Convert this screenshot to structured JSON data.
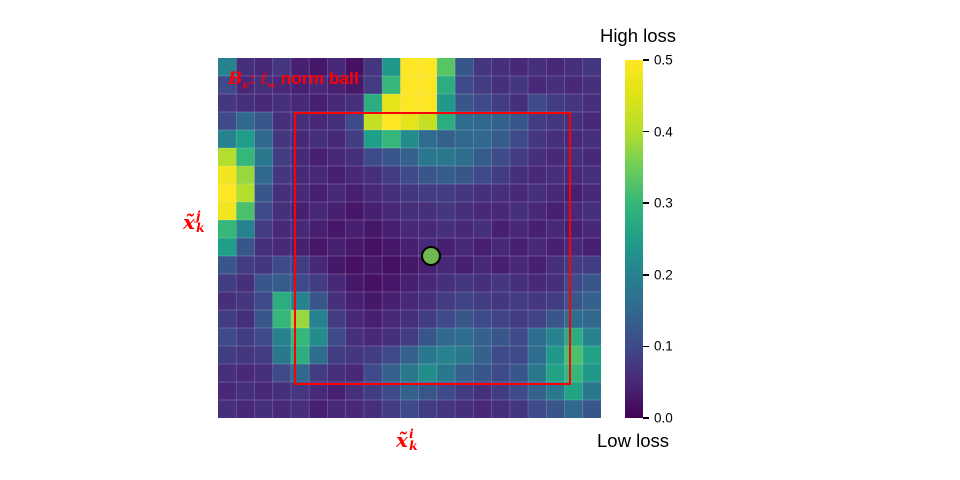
{
  "figure": {
    "annotation": {
      "text": "Bϵ: ℓ∞ norm ball",
      "var": "B",
      "var_sub": "ϵ",
      "colon": ": ",
      "ell": "ℓ",
      "ell_sub": "∞",
      "rest": " norm ball",
      "color": "#ff0000"
    },
    "axis_labels": {
      "y": {
        "base": "x̃",
        "sup": "j",
        "sub": "k"
      },
      "x": {
        "base": "x̃",
        "sup": "i",
        "sub": "k"
      }
    },
    "marker": {
      "fill": "#6fb750",
      "outline": "#000000"
    },
    "norm_ball_color": "#ff0000",
    "colorbar": {
      "high_label": "High loss",
      "low_label": "Low loss",
      "ticks": [
        "0.5",
        "0.4",
        "0.3",
        "0.2",
        "0.1",
        "0.0"
      ]
    }
  },
  "chart_data": {
    "type": "heatmap",
    "title": "",
    "xlabel": "x̃_k^i",
    "ylabel": "x̃_k^j",
    "legend_high": "High loss",
    "legend_low": "Low loss",
    "value_min": 0.0,
    "value_max": 0.5,
    "colorbar_ticks": [
      0.5,
      0.4,
      0.3,
      0.2,
      0.1,
      0.0
    ],
    "grid_on": true,
    "grid_cols": 21,
    "grid_rows": 20,
    "colormap": "viridis",
    "colormap_stops": [
      {
        "t": 0.0,
        "c": "#440154"
      },
      {
        "t": 0.1,
        "c": "#482878"
      },
      {
        "t": 0.2,
        "c": "#3e4a89"
      },
      {
        "t": 0.3,
        "c": "#31688e"
      },
      {
        "t": 0.4,
        "c": "#26828e"
      },
      {
        "t": 0.5,
        "c": "#1f9e89"
      },
      {
        "t": 0.6,
        "c": "#35b779"
      },
      {
        "t": 0.7,
        "c": "#6dcd59"
      },
      {
        "t": 0.8,
        "c": "#b4de2c"
      },
      {
        "t": 0.9,
        "c": "#dfe318"
      },
      {
        "t": 1.0,
        "c": "#fde725"
      }
    ],
    "values": [
      [
        0.2,
        0.06,
        0.05,
        0.07,
        0.04,
        0.03,
        0.05,
        0.02,
        0.07,
        0.24,
        0.5,
        0.5,
        0.33,
        0.12,
        0.07,
        0.06,
        0.05,
        0.06,
        0.05,
        0.06,
        0.07
      ],
      [
        0.1,
        0.05,
        0.06,
        0.05,
        0.04,
        0.05,
        0.04,
        0.03,
        0.08,
        0.3,
        0.5,
        0.5,
        0.28,
        0.1,
        0.08,
        0.06,
        0.07,
        0.05,
        0.06,
        0.05,
        0.06
      ],
      [
        0.07,
        0.06,
        0.05,
        0.06,
        0.05,
        0.04,
        0.05,
        0.06,
        0.28,
        0.46,
        0.5,
        0.5,
        0.24,
        0.12,
        0.1,
        0.08,
        0.06,
        0.1,
        0.08,
        0.07,
        0.06
      ],
      [
        0.1,
        0.15,
        0.12,
        0.06,
        0.06,
        0.05,
        0.06,
        0.1,
        0.42,
        0.5,
        0.46,
        0.42,
        0.28,
        0.16,
        0.15,
        0.14,
        0.12,
        0.08,
        0.07,
        0.06,
        0.05
      ],
      [
        0.2,
        0.25,
        0.15,
        0.07,
        0.05,
        0.06,
        0.05,
        0.08,
        0.25,
        0.3,
        0.22,
        0.16,
        0.14,
        0.15,
        0.15,
        0.13,
        0.1,
        0.07,
        0.06,
        0.05,
        0.06
      ],
      [
        0.4,
        0.3,
        0.18,
        0.08,
        0.05,
        0.04,
        0.05,
        0.06,
        0.1,
        0.12,
        0.14,
        0.18,
        0.18,
        0.16,
        0.13,
        0.1,
        0.08,
        0.06,
        0.05,
        0.06,
        0.05
      ],
      [
        0.48,
        0.38,
        0.15,
        0.07,
        0.05,
        0.05,
        0.04,
        0.05,
        0.06,
        0.08,
        0.1,
        0.12,
        0.13,
        0.12,
        0.1,
        0.08,
        0.06,
        0.05,
        0.06,
        0.05,
        0.06
      ],
      [
        0.5,
        0.4,
        0.12,
        0.06,
        0.05,
        0.04,
        0.05,
        0.04,
        0.05,
        0.06,
        0.07,
        0.08,
        0.08,
        0.07,
        0.06,
        0.06,
        0.05,
        0.06,
        0.05,
        0.04,
        0.05
      ],
      [
        0.48,
        0.32,
        0.1,
        0.06,
        0.04,
        0.05,
        0.04,
        0.03,
        0.04,
        0.05,
        0.06,
        0.06,
        0.07,
        0.06,
        0.05,
        0.05,
        0.06,
        0.05,
        0.04,
        0.05,
        0.06
      ],
      [
        0.3,
        0.2,
        0.08,
        0.05,
        0.05,
        0.04,
        0.03,
        0.04,
        0.03,
        0.04,
        0.05,
        0.05,
        0.06,
        0.05,
        0.06,
        0.04,
        0.05,
        0.04,
        0.05,
        0.04,
        0.05
      ],
      [
        0.25,
        0.12,
        0.06,
        0.05,
        0.04,
        0.03,
        0.04,
        0.03,
        0.02,
        0.03,
        0.04,
        0.05,
        0.04,
        0.05,
        0.04,
        0.05,
        0.04,
        0.05,
        0.04,
        0.05,
        0.04
      ],
      [
        0.12,
        0.08,
        0.07,
        0.1,
        0.08,
        0.05,
        0.03,
        0.02,
        0.03,
        0.02,
        0.03,
        0.04,
        0.05,
        0.04,
        0.05,
        0.04,
        0.05,
        0.04,
        0.06,
        0.08,
        0.08
      ],
      [
        0.08,
        0.06,
        0.12,
        0.13,
        0.1,
        0.08,
        0.05,
        0.03,
        0.02,
        0.03,
        0.04,
        0.05,
        0.06,
        0.07,
        0.06,
        0.07,
        0.06,
        0.05,
        0.06,
        0.1,
        0.12
      ],
      [
        0.06,
        0.07,
        0.1,
        0.28,
        0.2,
        0.12,
        0.06,
        0.04,
        0.03,
        0.04,
        0.05,
        0.06,
        0.08,
        0.09,
        0.08,
        0.07,
        0.08,
        0.07,
        0.08,
        0.12,
        0.14
      ],
      [
        0.08,
        0.06,
        0.12,
        0.3,
        0.38,
        0.2,
        0.08,
        0.05,
        0.04,
        0.05,
        0.06,
        0.08,
        0.1,
        0.12,
        0.1,
        0.09,
        0.08,
        0.09,
        0.12,
        0.16,
        0.15
      ],
      [
        0.1,
        0.08,
        0.1,
        0.2,
        0.3,
        0.22,
        0.1,
        0.06,
        0.05,
        0.06,
        0.08,
        0.12,
        0.15,
        0.16,
        0.14,
        0.12,
        0.1,
        0.16,
        0.2,
        0.28,
        0.2
      ],
      [
        0.08,
        0.07,
        0.08,
        0.18,
        0.28,
        0.16,
        0.08,
        0.07,
        0.08,
        0.1,
        0.14,
        0.18,
        0.2,
        0.18,
        0.14,
        0.1,
        0.1,
        0.16,
        0.24,
        0.32,
        0.26
      ],
      [
        0.06,
        0.05,
        0.06,
        0.1,
        0.15,
        0.08,
        0.06,
        0.05,
        0.1,
        0.14,
        0.18,
        0.22,
        0.18,
        0.14,
        0.12,
        0.1,
        0.12,
        0.18,
        0.26,
        0.3,
        0.24
      ],
      [
        0.05,
        0.06,
        0.05,
        0.06,
        0.07,
        0.05,
        0.04,
        0.06,
        0.08,
        0.1,
        0.14,
        0.12,
        0.1,
        0.08,
        0.06,
        0.08,
        0.1,
        0.14,
        0.18,
        0.26,
        0.18
      ],
      [
        0.06,
        0.05,
        0.06,
        0.05,
        0.06,
        0.04,
        0.05,
        0.05,
        0.06,
        0.08,
        0.1,
        0.08,
        0.07,
        0.06,
        0.05,
        0.06,
        0.07,
        0.1,
        0.12,
        0.15,
        0.12
      ]
    ]
  }
}
